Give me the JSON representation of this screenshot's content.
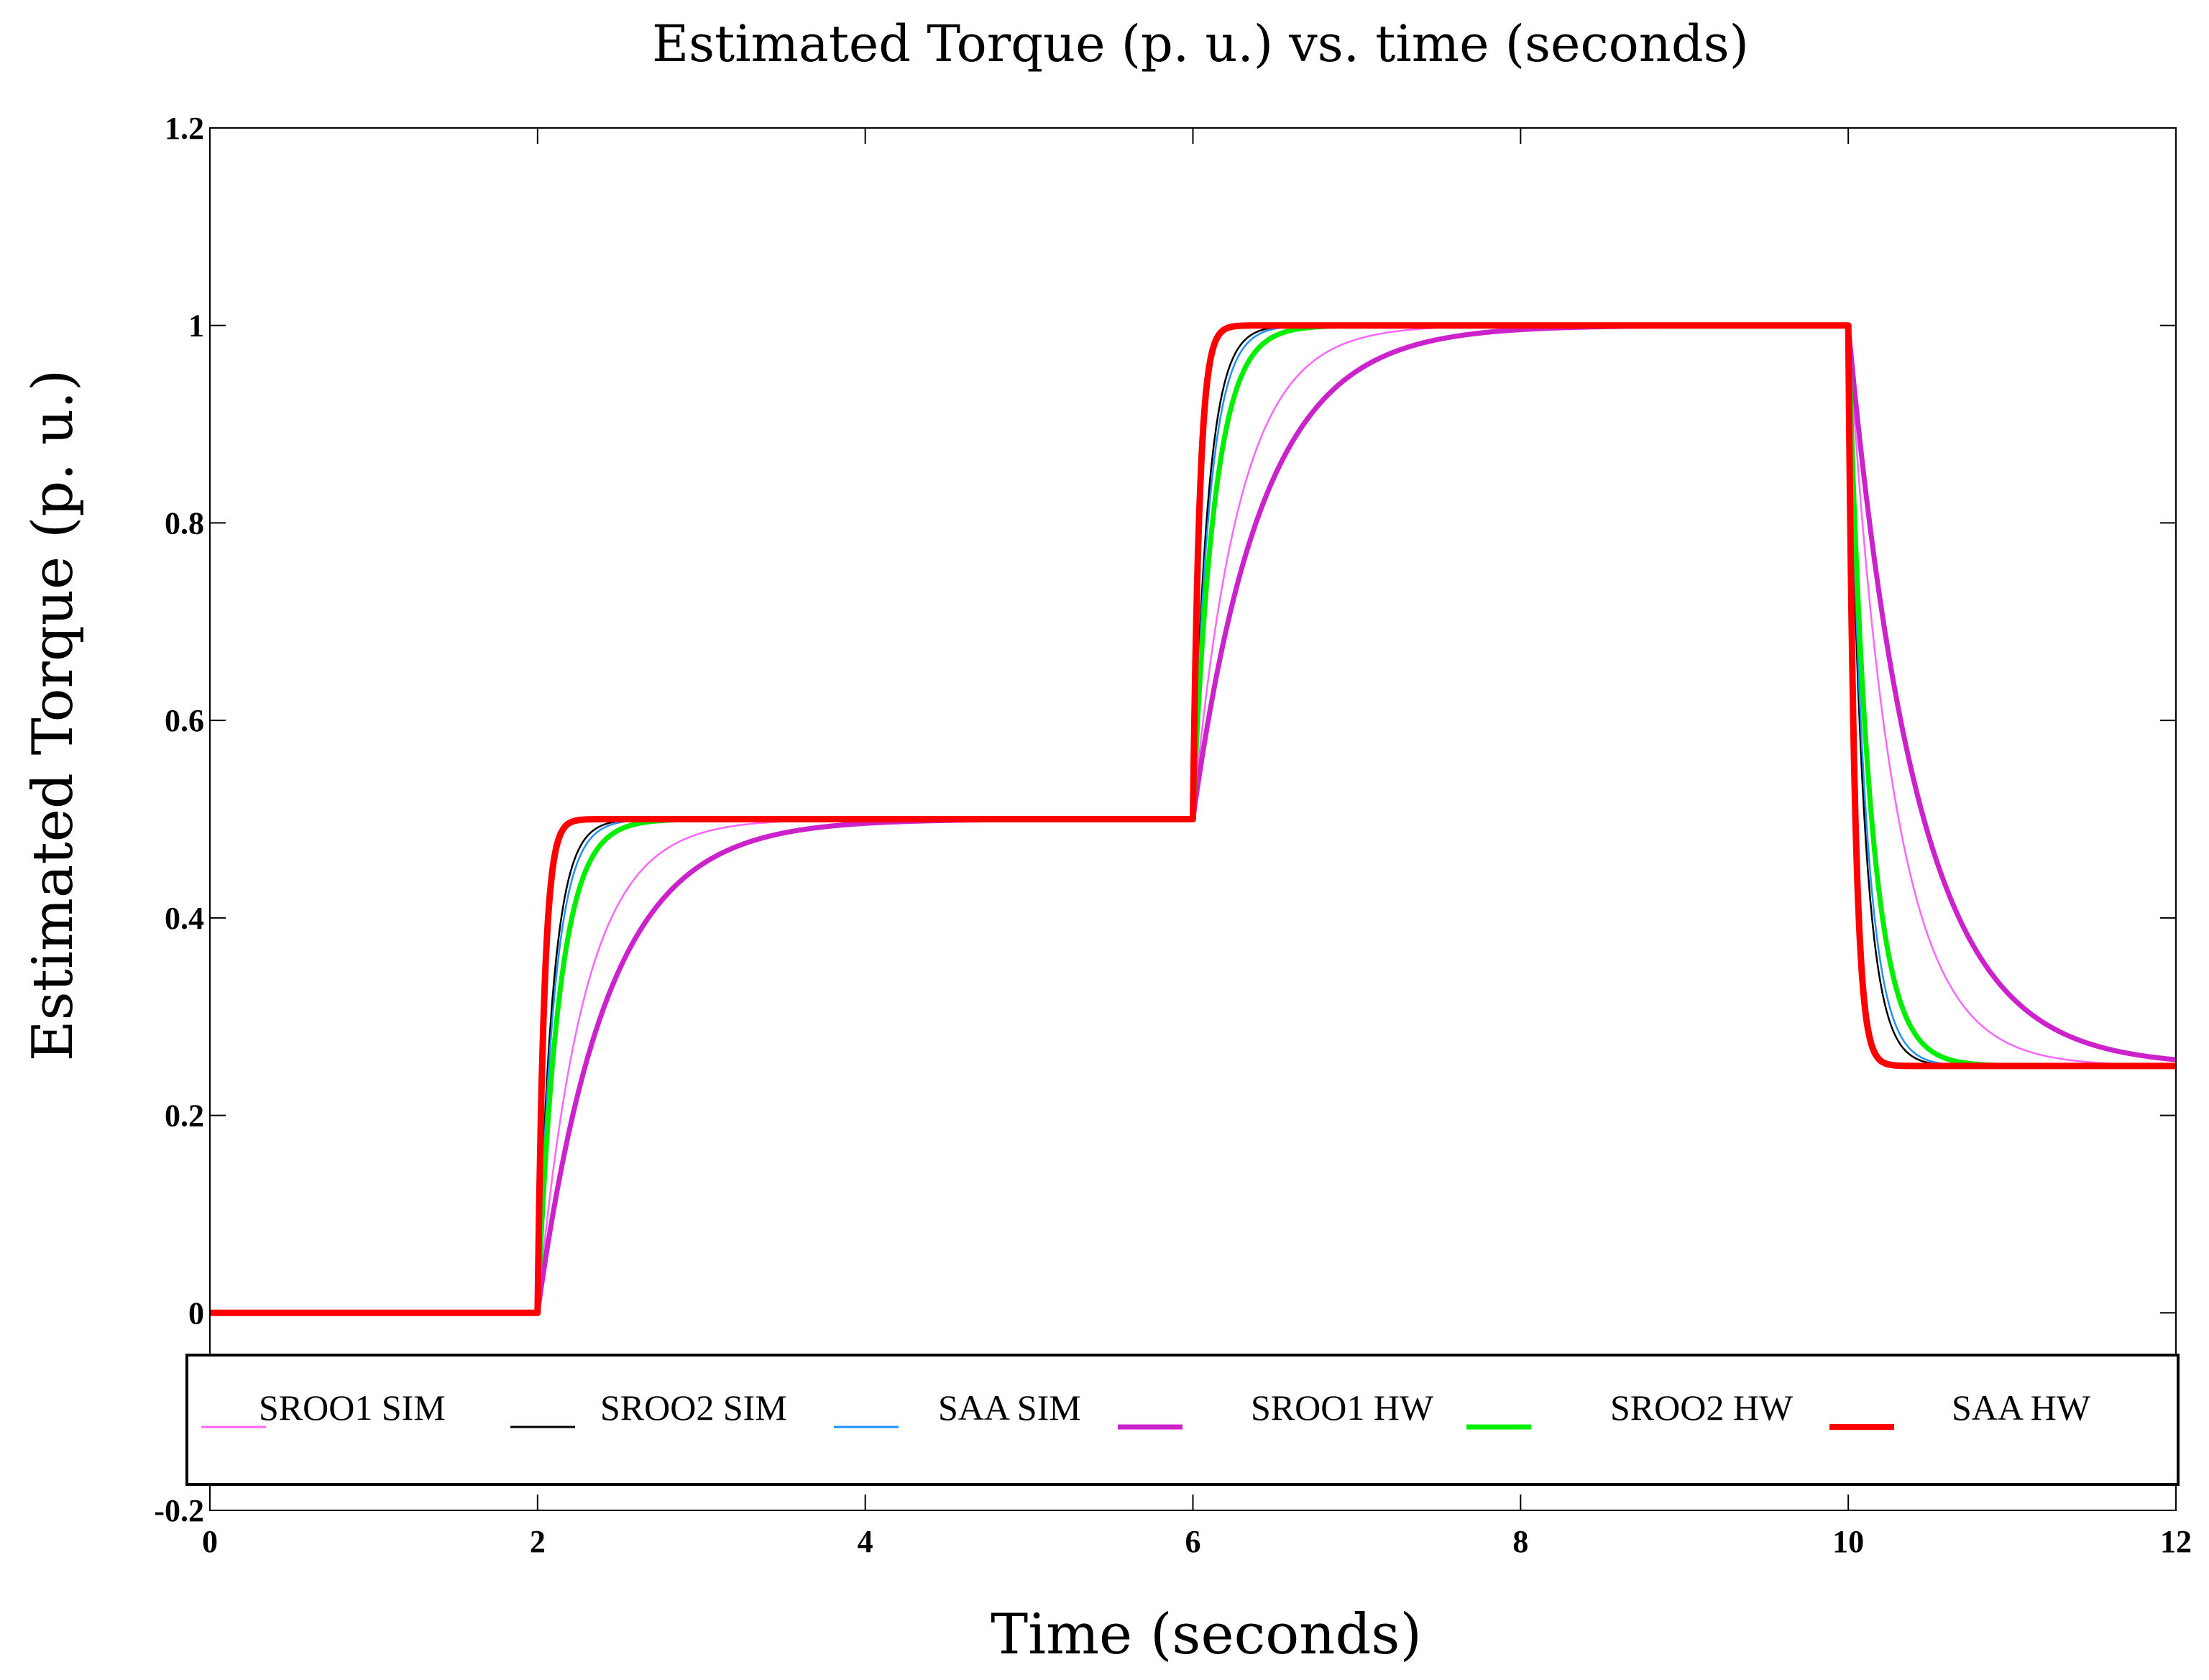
{
  "chart_data": {
    "type": "line",
    "title": "Estimated Torque (p. u.) vs. time (seconds)",
    "xlabel": "Time (seconds)",
    "ylabel": "Estimated Torque (p. u.)",
    "xlim": [
      0,
      12
    ],
    "ylim": [
      -0.2,
      1.2
    ],
    "xticks": [
      0,
      2,
      4,
      6,
      8,
      10,
      12
    ],
    "xtick_labels": [
      "0",
      "2",
      "4",
      "6",
      "8",
      "10",
      "12"
    ],
    "yticks": [
      -0.2,
      0,
      0.2,
      0.4,
      0.6,
      0.8,
      1,
      1.2
    ],
    "ytick_labels": [
      "-0.2",
      "0",
      "0.2",
      "0.4",
      "0.6",
      "0.8",
      "1",
      "1.2"
    ],
    "grid": false,
    "legend_position": "bottom",
    "reference_steps": [
      {
        "t": 0,
        "value": 0
      },
      {
        "t": 2,
        "value": 0.5
      },
      {
        "t": 6,
        "value": 1.0
      },
      {
        "t": 10,
        "value": 0.25
      }
    ],
    "series": [
      {
        "name": "SROO1 SIM",
        "color": "#ff66ff",
        "style": "thin",
        "time_constant": 0.28,
        "final_value_offset": 0
      },
      {
        "name": "SROO2 SIM",
        "color": "#000000",
        "style": "thin",
        "time_constant": 0.09,
        "final_value_offset": 0
      },
      {
        "name": "SAA SIM",
        "color": "#1e90ff",
        "style": "thin",
        "time_constant": 0.1,
        "final_value_offset": 0
      },
      {
        "name": "SROO1 HW",
        "color": "#cc22cc",
        "style": "thick",
        "time_constant": 0.42,
        "final_value_offset": 0
      },
      {
        "name": "SROO2 HW",
        "color": "#00ee00",
        "style": "thick",
        "time_constant": 0.13,
        "final_value_offset": 0
      },
      {
        "name": "SAA HW",
        "color": "#ff0000",
        "style": "thick",
        "time_constant": 0.04,
        "final_value_offset": 0
      }
    ]
  }
}
